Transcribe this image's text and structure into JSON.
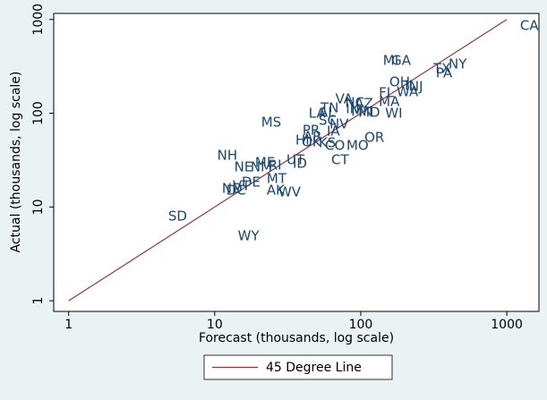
{
  "chart_data": {
    "type": "scatter",
    "x_label": "Forecast (thousands, log scale)",
    "y_label": "Actual (thousands, log scale)",
    "xlog": true,
    "ylog": true,
    "xlim": [
      0.79,
      1660
    ],
    "ylim": [
      0.77,
      1160
    ],
    "xticks": [
      1,
      10,
      100,
      1000
    ],
    "yticks": [
      1,
      10,
      100,
      1000
    ],
    "points": {
      "color": "#1a476f",
      "labels": [
        "CA",
        "MI",
        "GA",
        "TX",
        "NY",
        "PA",
        "OH",
        "NJ",
        "IL",
        "WA",
        "FL",
        "MA",
        "WI",
        "VA",
        "NC",
        "AZ",
        "IN",
        "MN",
        "MD",
        "LA",
        "AL",
        "TN",
        "SC",
        "NV",
        "MS",
        "HI",
        "OK",
        "KS",
        "CO",
        "MO",
        "OR",
        "CT",
        "IA",
        "AR",
        "PR",
        "UT",
        "ID",
        "RI",
        "NM",
        "NE",
        "ME",
        "NH",
        "MT",
        "DE",
        "ND",
        "DC",
        "VT",
        "AK",
        "WV",
        "SD",
        "WY"
      ],
      "x": [
        1233,
        142,
        162,
        314,
        399,
        327,
        157,
        214,
        200,
        176,
        133,
        133,
        147,
        67,
        78,
        91,
        79,
        86,
        96,
        44,
        51.5,
        53,
        51.5,
        61,
        20.8,
        35.7,
        39.4,
        51.5,
        56.9,
        79.8,
        106,
        62.8,
        58.5,
        40.5,
        39.9,
        31,
        34.2,
        23.3,
        17.6,
        13.6,
        18.9,
        10.4,
        22.7,
        15.3,
        11.2,
        12,
        13.3,
        22.7,
        27.3,
        4.8,
        14.4
      ],
      "y": [
        856,
        363,
        363,
        298,
        332,
        267,
        214,
        192,
        196,
        168,
        164,
        132,
        99,
        141,
        129,
        126,
        111,
        104,
        101,
        99,
        101,
        113,
        83,
        76,
        79.6,
        51.3,
        49,
        48,
        44.9,
        44.9,
        54.7,
        31.6,
        63.8,
        56,
        65.3,
        31.6,
        28.9,
        27.7,
        26.5,
        26.5,
        29.6,
        35.3,
        19.9,
        18.2,
        15.6,
        15,
        16.7,
        15,
        14.3,
        7.9,
        4.87
      ]
    },
    "series": [
      {
        "name": "45 Degree Line",
        "color": "#90353b",
        "x": [
          1,
          1000
        ],
        "values": [
          1,
          1000
        ]
      }
    ]
  }
}
